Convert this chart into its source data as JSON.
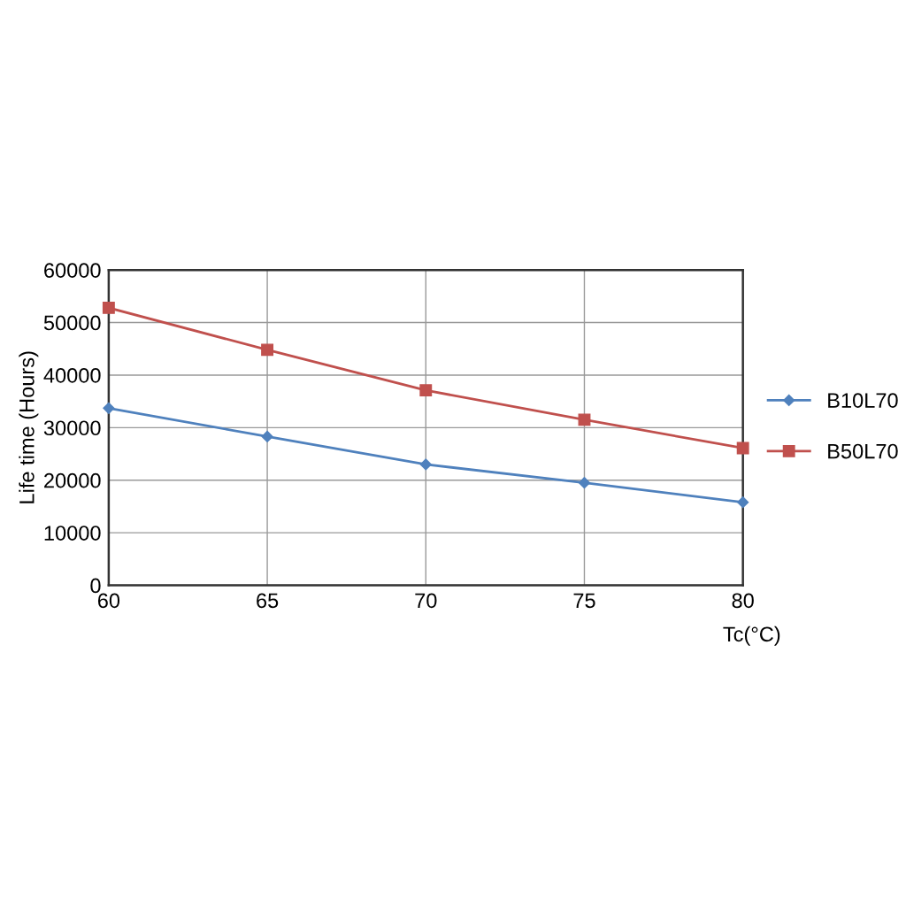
{
  "chart_data": {
    "type": "line",
    "xlabel": "Tc(°C)",
    "ylabel": "Life time (Hours)",
    "x": [
      60,
      65,
      70,
      75,
      80
    ],
    "series": [
      {
        "name": "B10L70",
        "color": "#4f81bd",
        "marker": "diamond",
        "values": [
          33700,
          28300,
          23000,
          19500,
          15800
        ]
      },
      {
        "name": "B50L70",
        "color": "#c0504d",
        "marker": "square",
        "values": [
          52800,
          44800,
          37100,
          31500,
          26100
        ]
      }
    ],
    "xlim": [
      60,
      80
    ],
    "xticks": [
      60,
      65,
      70,
      75,
      80
    ],
    "ylim": [
      0,
      60000
    ],
    "yticks": [
      0,
      10000,
      20000,
      30000,
      40000,
      50000,
      60000
    ],
    "grid": true,
    "legend": "right",
    "line_style": "solid"
  }
}
